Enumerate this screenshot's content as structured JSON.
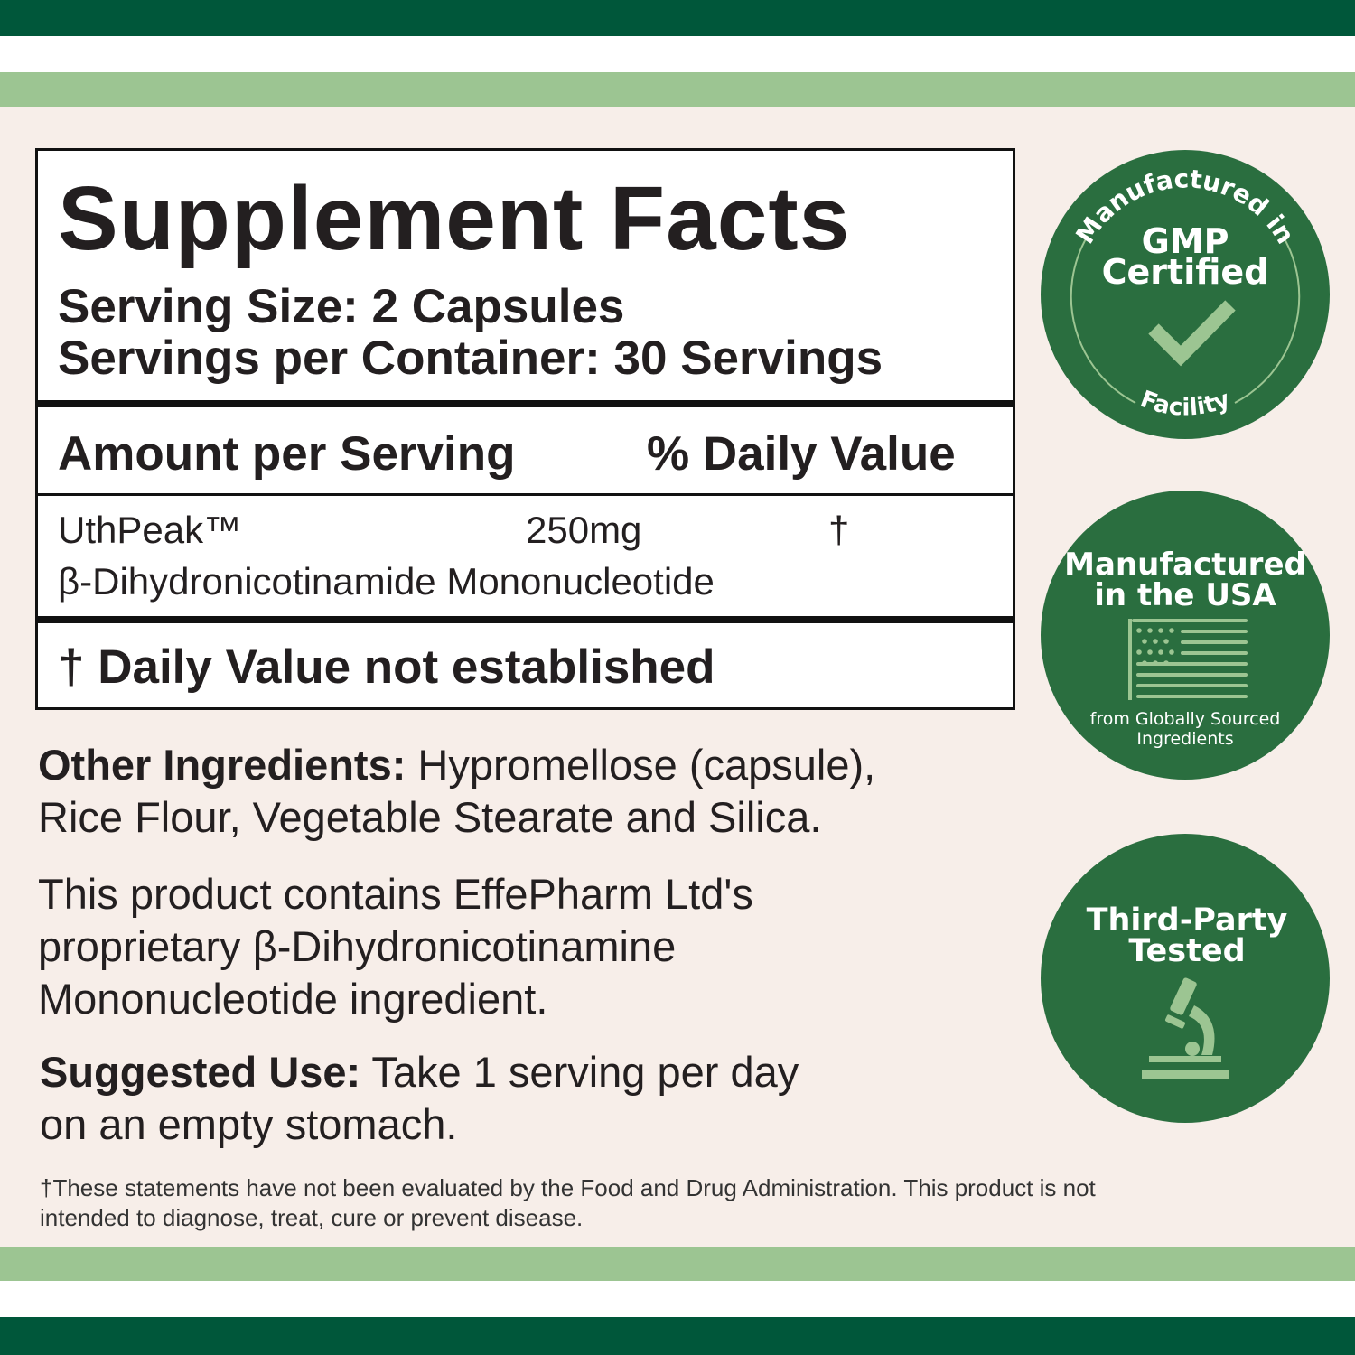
{
  "colors": {
    "dark_green": "#00573a",
    "light_green": "#9cc592",
    "badge_green": "#2a6e3f",
    "background": "#f7eee9"
  },
  "facts": {
    "title": "Supplement Facts",
    "serving_size": "Serving Size: 2 Capsules",
    "servings_per_container": "Servings per Container: 30 Servings",
    "header_amount": "Amount per Serving",
    "header_dv": "% Daily Value",
    "ingredient": {
      "name": "UthPeak™",
      "amount": "250mg",
      "dv": "†",
      "description": "β-Dihydronicotinamide Mononucleotide"
    },
    "footnote": "† Daily Value not established"
  },
  "other_ingredients": {
    "label": "Other Ingredients:",
    "line1": " Hypromellose (capsule),",
    "line2": "Rice Flour, Vegetable Stearate and Silica."
  },
  "proprietary": {
    "line1": "This product contains EffePharm Ltd's",
    "line2": "proprietary β-Dihydronicotinamine",
    "line3": "Mononucleotide ingredient."
  },
  "suggested_use": {
    "label": "Suggested Use:",
    "line1": " Take 1 serving per day",
    "line2": "on an empty stomach."
  },
  "disclaimer": {
    "line1": "†These statements have not been evaluated by the Food and Drug Administration. This product is not",
    "line2": "intended to diagnose, treat, cure or prevent disease."
  },
  "badges": {
    "gmp": {
      "arc_top": "Manufactured in",
      "line1": "GMP",
      "line2": "Certified",
      "arc_bottom": "Facility",
      "icon": "checkmark-icon"
    },
    "usa": {
      "line1": "Manufactured",
      "line2": "in the USA",
      "sub1": "from Globally Sourced",
      "sub2": "Ingredients",
      "icon": "us-flag-icon"
    },
    "tested": {
      "line1": "Third-Party",
      "line2": "Tested",
      "icon": "microscope-icon"
    }
  }
}
